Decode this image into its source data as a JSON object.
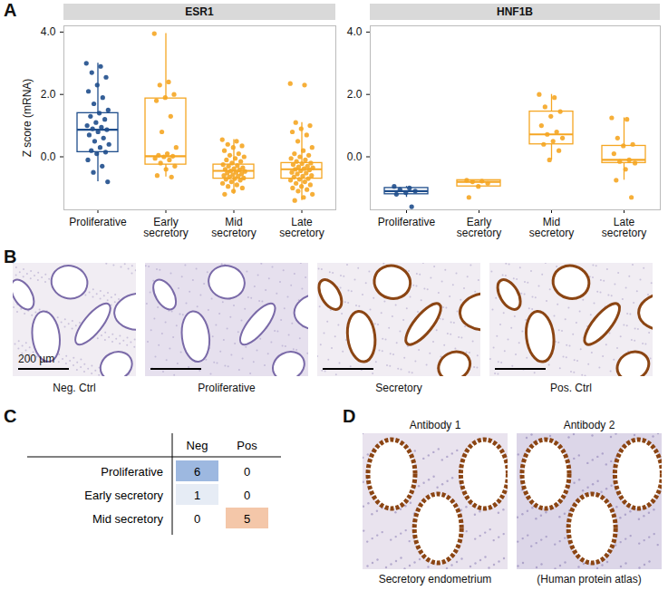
{
  "panel_labels": [
    "A",
    "B",
    "C",
    "D"
  ],
  "chart_data": [
    {
      "type": "box",
      "title": "ESR1",
      "y_label": "Z score (mRNA)",
      "categories": [
        "Proliferative",
        "Early\nsecretory",
        "Mid\nsecretory",
        "Late\nsecretory"
      ],
      "colors": [
        "#1f4e8c",
        "#f5a623",
        "#f5a623",
        "#f5a623"
      ],
      "ylim": [
        -1.7,
        4.2
      ],
      "yticks": [
        0,
        2,
        4
      ],
      "boxes": [
        {
          "min": -0.8,
          "q1": 0.15,
          "median": 0.87,
          "q3": 1.4,
          "max": 3.0
        },
        {
          "min": -0.65,
          "q1": -0.25,
          "median": 0.02,
          "q3": 1.87,
          "max": 3.95
        },
        {
          "min": -1.2,
          "q1": -0.7,
          "median": -0.45,
          "q3": -0.25,
          "max": 0.55
        },
        {
          "min": -1.4,
          "q1": -0.7,
          "median": -0.4,
          "q3": -0.2,
          "max": 1.1
        }
      ],
      "points": [
        [
          3.0,
          2.9,
          2.7,
          2.55,
          2.3,
          2.1,
          1.9,
          1.7,
          1.5,
          1.4,
          1.3,
          1.2,
          1.1,
          1.0,
          0.95,
          0.9,
          0.87,
          0.8,
          0.7,
          0.6,
          0.5,
          0.4,
          0.3,
          0.2,
          0.15,
          0.1,
          -0.1,
          -0.3,
          -0.5,
          -0.8
        ],
        [
          3.95,
          2.4,
          2.3,
          2.0,
          1.9,
          1.8,
          1.3,
          0.8,
          0.3,
          0.1,
          0.05,
          0.02,
          0.0,
          -0.05,
          -0.1,
          -0.2,
          -0.3,
          -0.4,
          -0.6,
          -0.65
        ],
        [
          0.55,
          0.5,
          0.4,
          0.35,
          0.3,
          0.2,
          0.1,
          0.05,
          0,
          -0.05,
          -0.1,
          -0.15,
          -0.2,
          -0.25,
          -0.28,
          -0.3,
          -0.35,
          -0.38,
          -0.4,
          -0.42,
          -0.45,
          -0.47,
          -0.5,
          -0.52,
          -0.55,
          -0.58,
          -0.6,
          -0.62,
          -0.65,
          -0.68,
          -0.7,
          -0.72,
          -0.75,
          -0.8,
          -0.85,
          -0.9,
          -0.95,
          -1.0,
          -1.1,
          -1.2
        ],
        [
          2.35,
          2.3,
          1.1,
          1.0,
          0.9,
          0.8,
          0.7,
          0.5,
          0.3,
          0.2,
          0.1,
          0.05,
          0,
          -0.05,
          -0.1,
          -0.15,
          -0.2,
          -0.22,
          -0.25,
          -0.3,
          -0.32,
          -0.35,
          -0.38,
          -0.4,
          -0.42,
          -0.45,
          -0.5,
          -0.52,
          -0.55,
          -0.6,
          -0.62,
          -0.65,
          -0.7,
          -0.72,
          -0.75,
          -0.8,
          -0.85,
          -0.9,
          -0.95,
          -1.0,
          -1.05,
          -1.1,
          -1.2,
          -1.3,
          -1.4
        ]
      ]
    },
    {
      "type": "box",
      "title": "HNF1B",
      "categories": [
        "Proliferative",
        "Early\nsecretory",
        "Mid\nsecretory",
        "Late\nsecretory"
      ],
      "colors": [
        "#1f4e8c",
        "#f5a623",
        "#f5a623",
        "#f5a623"
      ],
      "ylim": [
        -1.7,
        4.2
      ],
      "yticks": [
        0,
        2,
        4
      ],
      "boxes": [
        {
          "min": -1.3,
          "q1": -1.2,
          "median": -1.1,
          "q3": -1.0,
          "max": -0.95
        },
        {
          "min": -0.95,
          "q1": -0.95,
          "median": -0.8,
          "q3": -0.75,
          "max": -0.75
        },
        {
          "min": -0.1,
          "q1": 0.4,
          "median": 0.72,
          "q3": 1.45,
          "max": 2.0
        },
        {
          "min": -0.75,
          "q1": -0.2,
          "median": -0.1,
          "q3": 0.35,
          "max": 1.25
        }
      ],
      "points": [
        [
          -0.95,
          -1.0,
          -1.05,
          -1.1,
          -1.15,
          -1.2,
          -1.6
        ],
        [
          -0.75,
          -0.78,
          -0.8,
          -0.85,
          -0.95,
          -1.3
        ],
        [
          2.0,
          1.9,
          1.6,
          1.45,
          1.3,
          1.0,
          0.8,
          0.72,
          0.6,
          0.5,
          0.4,
          0.2,
          -0.1
        ],
        [
          1.25,
          1.2,
          0.6,
          0.4,
          0.35,
          0.1,
          -0.1,
          -0.15,
          -0.2,
          -0.4,
          -0.75,
          -1.3
        ]
      ]
    }
  ],
  "images_B": {
    "scale_bar": "200 µm",
    "captions": [
      "Neg. Ctrl",
      "Proliferative",
      "Secretory",
      "Pos. Ctrl"
    ]
  },
  "table_C": {
    "columns": [
      "Neg",
      "Pos"
    ],
    "rows": [
      {
        "label": "Proliferative",
        "values": [
          6,
          0
        ],
        "colors": [
          "#9db8e0",
          "#ffffff"
        ]
      },
      {
        "label": "Early secretory",
        "values": [
          1,
          0
        ],
        "colors": [
          "#e6ecf5",
          "#ffffff"
        ]
      },
      {
        "label": "Mid secretory",
        "values": [
          0,
          5
        ],
        "colors": [
          "#ffffff",
          "#f4c7a9"
        ]
      }
    ]
  },
  "images_D": [
    {
      "title": "Antibody 1",
      "caption": "Secretory endometrium"
    },
    {
      "title": "Antibody 2",
      "caption": "(Human protein atlas)"
    }
  ]
}
